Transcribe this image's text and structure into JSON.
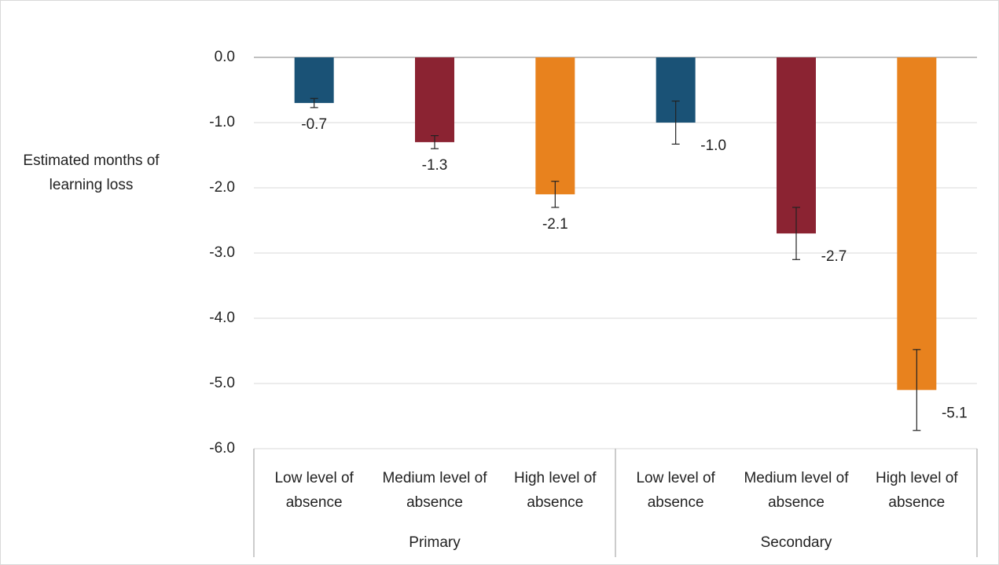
{
  "chart_data": {
    "type": "bar",
    "y_label": "Estimated months of learning loss",
    "groups": [
      {
        "name": "Primary",
        "categories": [
          "Low level of absence",
          "Medium level of absence",
          "High level of absence"
        ]
      },
      {
        "name": "Secondary",
        "categories": [
          "Low level of absence",
          "Medium level of absence",
          "High level of absence"
        ]
      }
    ],
    "values": [
      -0.7,
      -1.3,
      -2.1,
      -1.0,
      -2.7,
      -5.1
    ],
    "value_labels": [
      "-0.7",
      "-1.3",
      "-2.1",
      "-1.0",
      "-2.7",
      "-5.1"
    ],
    "errors": [
      0.07,
      0.1,
      0.2,
      0.33,
      0.4,
      0.62
    ],
    "colors": [
      "#1a5276",
      "#8b2332",
      "#e8821e",
      "#1a5276",
      "#8b2332",
      "#e8821e"
    ],
    "ylim": [
      -6,
      0
    ],
    "yticks": [
      {
        "value": 0,
        "label": "0.0"
      },
      {
        "value": -1,
        "label": "-1.0"
      },
      {
        "value": -2,
        "label": "-2.0"
      },
      {
        "value": -3,
        "label": "-3.0"
      },
      {
        "value": -4,
        "label": "-4.0"
      },
      {
        "value": -5,
        "label": "-5.0"
      },
      {
        "value": -6,
        "label": "-6.0"
      }
    ],
    "grid": true
  }
}
